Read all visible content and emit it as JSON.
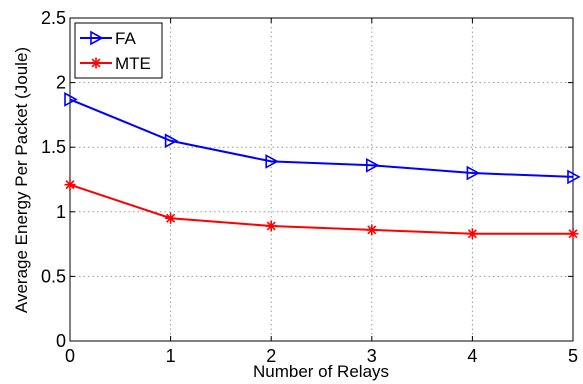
{
  "chart_data": {
    "type": "line",
    "title": "",
    "xlabel": "Number of Relays",
    "ylabel": "Average Energy Per Packet (Joule)",
    "x": [
      0,
      1,
      2,
      3,
      4,
      5
    ],
    "xlim": [
      0,
      5
    ],
    "ylim": [
      0,
      2.5
    ],
    "xticks": [
      "0",
      "1",
      "2",
      "3",
      "4",
      "5"
    ],
    "yticks": [
      "0",
      "0.5",
      "1",
      "1.5",
      "2",
      "2.5"
    ],
    "grid": true,
    "legend_position": "top-left",
    "series": [
      {
        "name": "FA",
        "color": "#0000ff",
        "marker": "triangle-right",
        "values": [
          1.87,
          1.55,
          1.39,
          1.36,
          1.3,
          1.27
        ]
      },
      {
        "name": "MTE",
        "color": "#ff0000",
        "marker": "asterisk",
        "values": [
          1.21,
          0.95,
          0.89,
          0.86,
          0.83,
          0.83
        ]
      }
    ]
  }
}
